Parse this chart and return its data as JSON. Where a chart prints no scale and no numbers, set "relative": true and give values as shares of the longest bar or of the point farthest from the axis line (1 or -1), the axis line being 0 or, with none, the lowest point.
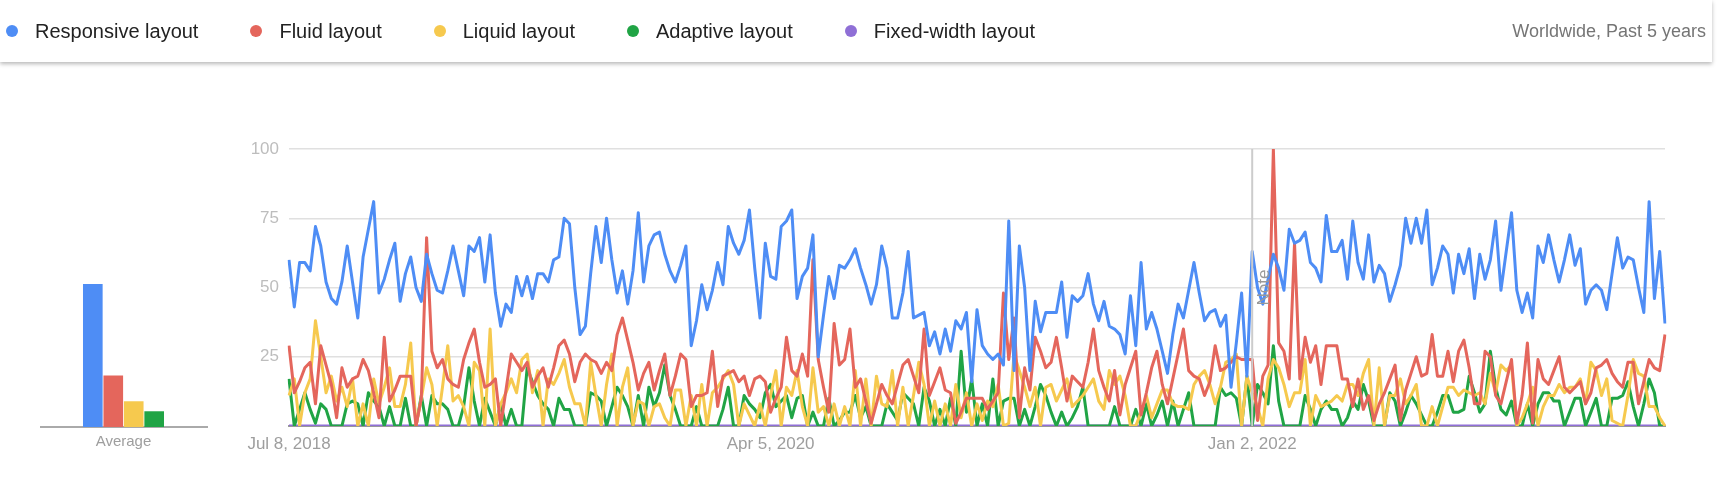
{
  "chart_data": [
    {
      "type": "bar",
      "categories": [
        "Average"
      ],
      "relative": true,
      "series": [
        {
          "color": "#4e8df5",
          "values": [
            1
          ]
        },
        {
          "color": "#e4665c",
          "values": [
            0.36
          ]
        },
        {
          "color": "#f6c94e",
          "values": [
            0.18
          ]
        },
        {
          "color": "#20a445",
          "values": [
            0.11
          ]
        }
      ]
    },
    {
      "type": "line",
      "subtitle": "Worldwide, Past 5 years",
      "legend": "top",
      "grid": "y",
      "ylim": [
        0,
        100
      ],
      "yticks": [
        25,
        50,
        75,
        100
      ],
      "categories": [
        "Jul 8, 2018",
        null,
        null,
        null,
        null,
        null,
        null,
        null,
        null,
        null,
        null,
        null,
        null,
        null,
        null,
        null,
        null,
        null,
        null,
        null,
        null,
        null,
        null,
        null,
        null,
        null,
        null,
        null,
        null,
        null,
        null,
        null,
        null,
        null,
        null,
        null,
        null,
        null,
        null,
        null,
        null,
        null,
        null,
        null,
        null,
        null,
        null,
        null,
        null,
        null,
        null,
        null,
        null,
        null,
        null,
        null,
        null,
        null,
        null,
        null,
        null,
        null,
        null,
        null,
        null,
        null,
        null,
        null,
        null,
        null,
        null,
        null,
        null,
        null,
        null,
        null,
        null,
        null,
        null,
        null,
        null,
        null,
        null,
        null,
        null,
        null,
        null,
        null,
        null,
        null,
        null,
        "Apr 5, 2020",
        null,
        null,
        null,
        null,
        null,
        null,
        null,
        null,
        null,
        null,
        null,
        null,
        null,
        null,
        null,
        null,
        null,
        null,
        null,
        null,
        null,
        null,
        null,
        null,
        null,
        null,
        null,
        null,
        null,
        null,
        null,
        null,
        null,
        null,
        null,
        null,
        null,
        null,
        null,
        null,
        null,
        null,
        null,
        null,
        null,
        null,
        null,
        null,
        null,
        null,
        null,
        null,
        null,
        null,
        null,
        null,
        null,
        null,
        null,
        null,
        null,
        null,
        null,
        null,
        null,
        null,
        null,
        null,
        null,
        null,
        null,
        null,
        null,
        null,
        null,
        null,
        null,
        null,
        null,
        null,
        null,
        null,
        null,
        null,
        null,
        null,
        null,
        null,
        null,
        null,
        "Jan 2, 2022",
        null,
        null,
        null,
        null,
        null,
        null,
        null,
        null,
        null,
        null,
        null,
        null,
        null,
        null,
        null,
        null,
        null,
        null,
        null,
        null,
        null,
        null,
        null,
        null,
        null,
        null,
        null,
        null,
        null,
        null,
        null,
        null,
        null,
        null,
        null,
        null,
        null,
        null,
        null,
        null,
        null,
        null,
        null,
        null,
        null,
        null,
        null,
        null,
        null,
        null,
        null,
        null,
        null,
        null,
        null,
        null,
        null,
        null,
        null,
        null,
        null,
        null,
        null,
        null,
        null,
        null,
        null,
        null,
        null,
        null,
        null,
        null,
        null,
        null,
        null,
        null,
        null,
        null
      ],
      "ref_lines": [
        {
          "axis": "x",
          "value": "Jan 2, 2022",
          "label": "Note",
          "color": "#cccccc"
        }
      ],
      "series": [
        {
          "name": "Responsive layout",
          "color": "#4e8df5",
          "values": [
            60,
            43,
            59,
            59,
            56,
            72,
            65,
            52,
            46,
            44,
            52,
            65,
            52,
            39,
            61,
            71,
            81,
            48,
            53,
            60,
            66,
            45,
            55,
            61,
            50,
            45,
            62,
            55,
            49,
            48,
            56,
            65,
            56,
            47,
            65,
            63,
            68,
            52,
            69,
            48,
            36,
            44,
            41,
            54,
            47,
            54,
            46,
            55,
            55,
            52,
            60,
            61,
            75,
            73,
            50,
            33,
            36,
            55,
            72,
            59,
            75,
            60,
            48,
            56,
            44,
            56,
            77,
            52,
            65,
            69,
            70,
            62,
            56,
            52,
            58,
            65,
            29,
            38,
            51,
            42,
            49,
            59,
            51,
            72,
            66,
            62,
            67,
            78,
            57,
            39,
            66,
            54,
            53,
            72,
            74,
            78,
            46,
            54,
            57,
            69,
            25,
            40,
            54,
            46,
            58,
            57,
            60,
            64,
            57,
            51,
            44,
            51,
            65,
            57,
            39,
            39,
            48,
            63,
            39,
            40,
            41,
            29,
            34,
            26,
            35,
            27,
            38,
            35,
            41,
            16,
            42,
            29,
            26,
            24,
            26,
            22,
            74,
            20,
            65,
            50,
            20,
            45,
            34,
            41,
            41,
            41,
            52,
            32,
            47,
            45,
            47,
            55,
            44,
            38,
            45,
            36,
            35,
            33,
            26,
            47,
            29,
            59,
            35,
            41,
            35,
            27,
            19,
            33,
            44,
            39,
            49,
            59,
            48,
            38,
            41,
            42,
            36,
            40,
            14,
            30,
            48,
            18,
            63,
            50,
            44,
            53,
            62,
            57,
            49,
            71,
            66,
            67,
            70,
            59,
            57,
            52,
            76,
            63,
            63,
            67,
            53,
            74,
            59,
            53,
            69,
            52,
            58,
            55,
            45,
            51,
            58,
            75,
            66,
            75,
            66,
            78,
            51,
            57,
            65,
            62,
            48,
            62,
            55,
            64,
            46,
            62,
            53,
            60,
            74,
            49,
            63,
            77,
            49,
            41,
            48,
            39,
            65,
            59,
            69,
            60,
            52,
            60,
            69,
            58,
            64,
            44,
            49,
            51,
            49,
            42,
            55,
            68,
            57,
            61,
            60,
            50,
            41,
            81,
            46,
            63,
            37
          ]
        },
        {
          "name": "Fluid layout",
          "color": "#e4665c",
          "values": [
            29,
            12,
            16,
            21,
            23,
            8,
            29,
            22,
            15,
            3,
            21,
            14,
            17,
            18,
            24,
            20,
            12,
            3,
            32,
            9,
            13,
            18,
            18,
            18,
            0,
            10,
            68,
            27,
            21,
            24,
            17,
            15,
            14,
            24,
            30,
            35,
            23,
            14,
            15,
            17,
            0,
            13,
            26,
            23,
            20,
            23,
            14,
            18,
            21,
            14,
            21,
            29,
            31,
            26,
            16,
            23,
            26,
            24,
            23,
            19,
            23,
            20,
            33,
            39,
            31,
            23,
            13,
            19,
            23,
            13,
            20,
            26,
            11,
            18,
            26,
            24,
            7,
            11,
            11,
            12,
            27,
            7,
            18,
            19,
            20,
            16,
            18,
            11,
            17,
            18,
            16,
            5,
            10,
            14,
            32,
            20,
            18,
            26,
            18,
            60,
            24,
            14,
            5,
            37,
            22,
            24,
            35,
            14,
            17,
            9,
            1,
            8,
            15,
            11,
            8,
            15,
            22,
            24,
            18,
            12,
            35,
            11,
            16,
            21,
            13,
            12,
            1,
            5,
            10,
            10,
            10,
            10,
            6,
            9,
            12,
            48,
            24,
            39,
            3,
            21,
            13,
            32,
            27,
            21,
            23,
            32,
            21,
            9,
            18,
            16,
            14,
            23,
            35,
            20,
            14,
            9,
            20,
            4,
            15,
            21,
            27,
            4,
            12,
            21,
            27,
            15,
            8,
            17,
            26,
            35,
            20,
            18,
            17,
            11,
            16,
            29,
            20,
            21,
            23,
            25,
            24,
            24,
            24,
            2,
            18,
            22,
            100,
            30,
            27,
            17,
            66,
            17,
            32,
            23,
            29,
            15,
            29,
            29,
            29,
            17,
            17,
            7,
            17,
            6,
            11,
            2,
            8,
            12,
            17,
            22,
            2,
            13,
            19,
            25,
            18,
            19,
            33,
            18,
            18,
            27,
            16,
            27,
            31,
            21,
            8,
            8,
            27,
            25,
            11,
            8,
            16,
            24,
            1,
            11,
            30,
            1,
            24,
            17,
            15,
            20,
            25,
            14,
            12,
            14,
            16,
            8,
            12,
            21,
            22,
            24,
            19,
            16,
            14,
            23,
            23,
            8,
            16,
            24,
            21,
            20,
            33
          ]
        },
        {
          "name": "Liquid layout",
          "color": "#f6c94e",
          "values": [
            11,
            17,
            0,
            12,
            17,
            38,
            25,
            12,
            18,
            9,
            14,
            7,
            17,
            0,
            8,
            0,
            17,
            8,
            14,
            21,
            7,
            7,
            15,
            30,
            0,
            10,
            21,
            15,
            0,
            14,
            29,
            9,
            11,
            7,
            0,
            23,
            20,
            0,
            35,
            0,
            8,
            12,
            17,
            12,
            24,
            26,
            12,
            20,
            0,
            17,
            15,
            19,
            24,
            14,
            8,
            8,
            0,
            23,
            11,
            0,
            15,
            26,
            0,
            14,
            21,
            0,
            9,
            8,
            0,
            7,
            8,
            3,
            0,
            13,
            13,
            0,
            11,
            0,
            15,
            0,
            12,
            14,
            17,
            20,
            15,
            0,
            8,
            4,
            0,
            8,
            0,
            11,
            20,
            0,
            14,
            11,
            20,
            7,
            0,
            21,
            5,
            7,
            0,
            8,
            0,
            7,
            0,
            20,
            0,
            17,
            0,
            18,
            8,
            7,
            20,
            0,
            14,
            0,
            11,
            23,
            15,
            0,
            9,
            0,
            8,
            0,
            15,
            3,
            12,
            0,
            8,
            2,
            9,
            7,
            15,
            0,
            1,
            26,
            20,
            14,
            7,
            14,
            0,
            14,
            15,
            9,
            13,
            17,
            7,
            9,
            11,
            14,
            17,
            9,
            6,
            20,
            15,
            18,
            11,
            0,
            0,
            5,
            11,
            3,
            8,
            13,
            13,
            8,
            7,
            7,
            6,
            15,
            18,
            20,
            15,
            8,
            14,
            23,
            24,
            26,
            0,
            18,
            12,
            7,
            0,
            17,
            24,
            21,
            15,
            7,
            12,
            12,
            24,
            0,
            11,
            7,
            8,
            9,
            11,
            9,
            15,
            15,
            11,
            19,
            24,
            0,
            21,
            0,
            11,
            11,
            17,
            8,
            11,
            15,
            0,
            0,
            7,
            0,
            7,
            14,
            14,
            11,
            13,
            12,
            11,
            12,
            8,
            19,
            12,
            22,
            20,
            22,
            0,
            3,
            8,
            14,
            0,
            7,
            11,
            11,
            15,
            12,
            14,
            14,
            17,
            8,
            23,
            20,
            11,
            17,
            2,
            1,
            0,
            11,
            24,
            19,
            18,
            7,
            7,
            3,
            0
          ]
        },
        {
          "name": "Adaptive layout",
          "color": "#20a445",
          "values": [
            17,
            0,
            6,
            12,
            6,
            1,
            8,
            6,
            0,
            0,
            0,
            8,
            9,
            8,
            0,
            12,
            9,
            7,
            0,
            7,
            0,
            0,
            10,
            0,
            0,
            11,
            0,
            11,
            8,
            8,
            6,
            0,
            0,
            7,
            21,
            9,
            0,
            10,
            5,
            0,
            8,
            0,
            6,
            0,
            0,
            21,
            16,
            11,
            8,
            6,
            0,
            10,
            6,
            6,
            0,
            0,
            0,
            12,
            11,
            9,
            0,
            7,
            14,
            11,
            7,
            0,
            11,
            0,
            14,
            7,
            12,
            22,
            11,
            6,
            0,
            0,
            0,
            7,
            0,
            0,
            0,
            0,
            6,
            14,
            0,
            0,
            11,
            8,
            6,
            3,
            12,
            15,
            7,
            9,
            11,
            3,
            10,
            11,
            0,
            5,
            0,
            0,
            10,
            0,
            2,
            5,
            5,
            11,
            3,
            7,
            0,
            0,
            0,
            8,
            5,
            2,
            12,
            10,
            8,
            0,
            14,
            9,
            0,
            6,
            0,
            10,
            0,
            27,
            5,
            17,
            0,
            8,
            0,
            17,
            0,
            9,
            10,
            10,
            0,
            6,
            0,
            7,
            15,
            11,
            5,
            0,
            5,
            0,
            3,
            7,
            14,
            0,
            0,
            0,
            0,
            0,
            7,
            0,
            0,
            0,
            6,
            0,
            8,
            0,
            4,
            9,
            0,
            9,
            0,
            6,
            12,
            0,
            0,
            0,
            0,
            0,
            14,
            11,
            12,
            10,
            0,
            18,
            0,
            15,
            12,
            8,
            29,
            9,
            0,
            0,
            0,
            0,
            11,
            6,
            0,
            6,
            9,
            6,
            6,
            0,
            3,
            9,
            6,
            15,
            9,
            0,
            0,
            0,
            12,
            9,
            0,
            5,
            11,
            8,
            4,
            0,
            0,
            5,
            11,
            11,
            5,
            5,
            6,
            18,
            12,
            5,
            8,
            27,
            14,
            6,
            4,
            9,
            0,
            0,
            8,
            0,
            8,
            12,
            12,
            9,
            9,
            0,
            5,
            10,
            10,
            0,
            5,
            10,
            0,
            0,
            10,
            10,
            11,
            16,
            7,
            0,
            8,
            17,
            12,
            0,
            0
          ]
        },
        {
          "name": "Fixed-width layout",
          "color": "#8f6fd6",
          "values": [
            0,
            0,
            0,
            0,
            0,
            0,
            0,
            0,
            0,
            0,
            0,
            0,
            0,
            0,
            0,
            0,
            0,
            0,
            0,
            0,
            0,
            0,
            0,
            0,
            0,
            0,
            0,
            0,
            0,
            0,
            0,
            0,
            0,
            0,
            0,
            0,
            0,
            0,
            0,
            0,
            0,
            0,
            0,
            0,
            0,
            0,
            0,
            0,
            0,
            0,
            0,
            0,
            0,
            0,
            0,
            0,
            0,
            0,
            0,
            0,
            0,
            0,
            0,
            0,
            0,
            0,
            0,
            0,
            0,
            0,
            0,
            0,
            0,
            0,
            0,
            0,
            0,
            0,
            0,
            0,
            0,
            0,
            0,
            0,
            0,
            0,
            0,
            0,
            0,
            0,
            0,
            0,
            0,
            0,
            0,
            0,
            0,
            0,
            0,
            0,
            0,
            0,
            0,
            0,
            0,
            0,
            0,
            0,
            0,
            0,
            0,
            0,
            0,
            0,
            0,
            0,
            0,
            0,
            0,
            0,
            0,
            0,
            0,
            0,
            0,
            0,
            0,
            0,
            0,
            0,
            0,
            0,
            0,
            0,
            0,
            0,
            0,
            0,
            0,
            0,
            0,
            0,
            0,
            0,
            0,
            0,
            0,
            0,
            0,
            0,
            0,
            0,
            0,
            0,
            0,
            0,
            0,
            0,
            0,
            0,
            0,
            0,
            0,
            0,
            0,
            0,
            0,
            0,
            0,
            0,
            0,
            0,
            0,
            0,
            0,
            0,
            0,
            0,
            0,
            0,
            0,
            0,
            0,
            0,
            0,
            0,
            0,
            0,
            0,
            0,
            0,
            0,
            0,
            0,
            0,
            0,
            0,
            0,
            0,
            0,
            0,
            0,
            0,
            0,
            0,
            0,
            0,
            0,
            0,
            0,
            0,
            0,
            0,
            0,
            0,
            0,
            0,
            0,
            0,
            0,
            0,
            0,
            0,
            0,
            0,
            0,
            0,
            0,
            0,
            0,
            0,
            0,
            0,
            0,
            0,
            0,
            0,
            0,
            0,
            0,
            0,
            0,
            0,
            0,
            0,
            0,
            0,
            0,
            0,
            0,
            0,
            0,
            0,
            0,
            0,
            0,
            0,
            0,
            0,
            0,
            0
          ]
        }
      ]
    }
  ]
}
